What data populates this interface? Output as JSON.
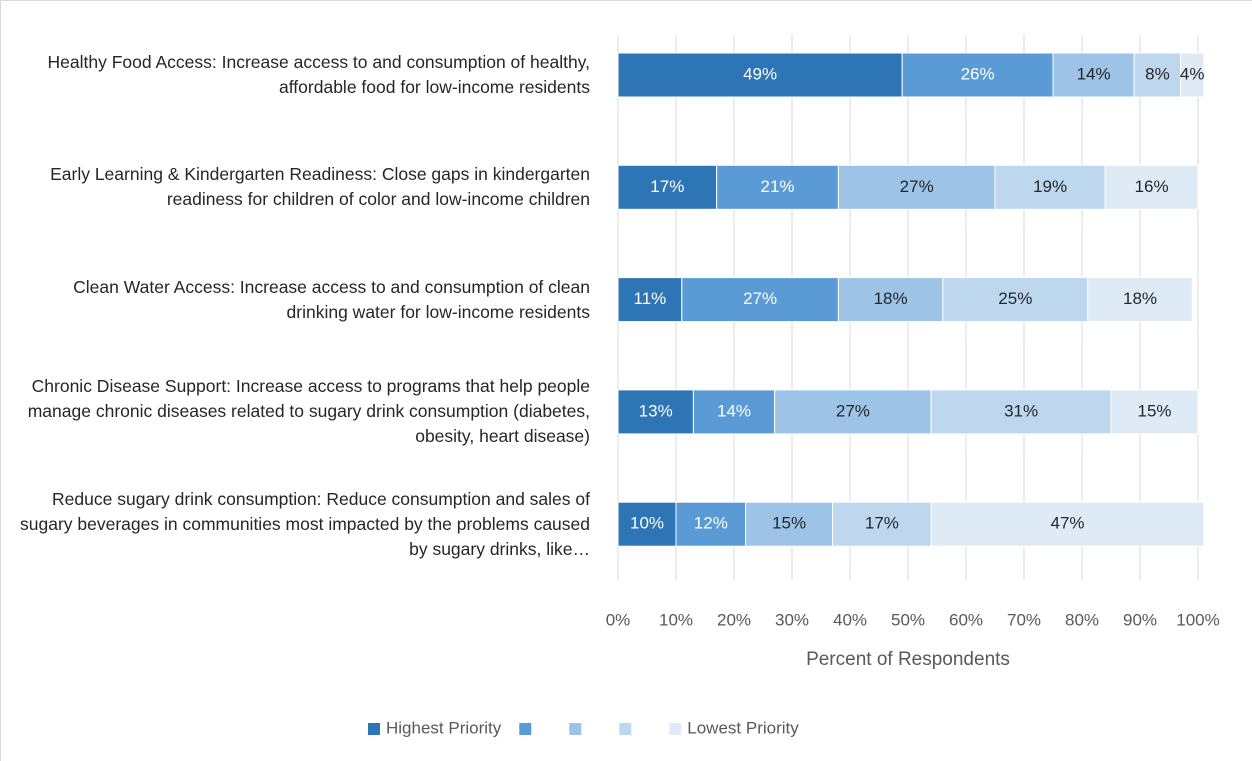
{
  "chart_data": {
    "type": "stacked_barh",
    "categories": [
      "Healthy Food Access: Increase access to and consumption of healthy, affordable food for low-income residents",
      "Early Learning & Kindergarten Readiness: Close gaps in kindergarten readiness for children of color and low-income children",
      "Clean Water Access: Increase access to and consumption of clean drinking water for low-income residents",
      "Chronic Disease Support: Increase access to programs that help people manage chronic diseases related to sugary drink consumption (diabetes, obesity, heart disease)",
      "Reduce sugary drink consumption: Reduce consumption and sales of sugary beverages in communities most impacted by the problems caused by sugary drinks, like…"
    ],
    "series": [
      {
        "name": "Highest Priority",
        "color": "#2e75b6",
        "label_color": "#ffffff",
        "values": [
          49,
          17,
          11,
          13,
          10
        ],
        "value_labels": [
          "49%",
          "17%",
          "11%",
          "13%",
          "10%"
        ]
      },
      {
        "color": "#5b9bd5",
        "label_color": "#ffffff",
        "values": [
          26,
          21,
          27,
          14,
          12
        ],
        "value_labels": [
          "26%",
          "21%",
          "27%",
          "14%",
          "12%"
        ]
      },
      {
        "color": "#9dc3e6",
        "label_color": "#262626",
        "values": [
          14,
          27,
          18,
          27,
          15
        ],
        "value_labels": [
          "14%",
          "27%",
          "18%",
          "27%",
          "15%"
        ]
      },
      {
        "color": "#bdd7ee",
        "label_color": "#262626",
        "values": [
          8,
          19,
          25,
          31,
          17
        ],
        "value_labels": [
          "8%",
          "19%",
          "25%",
          "31%",
          "17%"
        ]
      },
      {
        "name": "Lowest Priority",
        "color": "#deebf7",
        "label_color": "#262626",
        "values": [
          4,
          16,
          18,
          15,
          47
        ],
        "value_labels": [
          "4%",
          "16%",
          "18%",
          "15%",
          "47%"
        ]
      }
    ],
    "xlabel": "Percent of Respondents",
    "xlim": [
      0,
      100
    ],
    "xticks": [
      {
        "value": 0,
        "label": "0%"
      },
      {
        "value": 10,
        "label": "10%"
      },
      {
        "value": 20,
        "label": "20%"
      },
      {
        "value": 30,
        "label": "30%"
      },
      {
        "value": 40,
        "label": "40%"
      },
      {
        "value": 50,
        "label": "50%"
      },
      {
        "value": 60,
        "label": "60%"
      },
      {
        "value": 70,
        "label": "70%"
      },
      {
        "value": 80,
        "label": "80%"
      },
      {
        "value": 90,
        "label": "90%"
      },
      {
        "value": 100,
        "label": "100%"
      }
    ],
    "grid": true,
    "legend": "bottom"
  }
}
